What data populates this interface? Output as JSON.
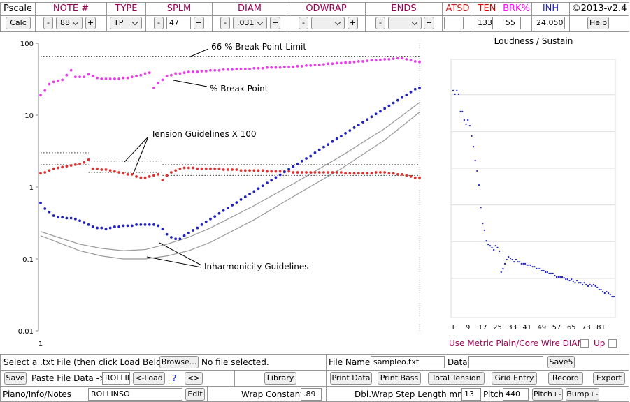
{
  "toolbar": {
    "headers": [
      "Pscale",
      "NOTE #",
      "TYPE",
      "SPLM",
      "DIAM",
      "ODWRAP",
      "ENDS",
      "ATSD",
      "TEN",
      "BRK%",
      "INH",
      "©2013-v2.4"
    ],
    "calc": "Calc",
    "minus": "-",
    "plus": "+",
    "note": "88",
    "type": "TP",
    "splm": "47",
    "diam": ".031",
    "ten": "133",
    "brk": "55",
    "inh": "24.050",
    "help": "Help"
  },
  "chart_data": [
    {
      "type": "scatter",
      "log_scale": true,
      "ylim": [
        0.01,
        100
      ],
      "yticks": [
        0.01,
        0.1,
        1,
        10,
        100
      ],
      "xlim": [
        1,
        88
      ],
      "xticks": [
        1
      ],
      "x": [
        1,
        2,
        3,
        4,
        5,
        6,
        7,
        8,
        9,
        10,
        11,
        12,
        13,
        14,
        15,
        16,
        17,
        18,
        19,
        20,
        21,
        22,
        23,
        24,
        25,
        26,
        27,
        28,
        29,
        30,
        31,
        32,
        33,
        34,
        35,
        36,
        37,
        38,
        39,
        40,
        41,
        42,
        43,
        44,
        45,
        46,
        47,
        48,
        49,
        50,
        51,
        52,
        53,
        54,
        55,
        56,
        57,
        58,
        59,
        60,
        61,
        62,
        63,
        64,
        65,
        66,
        67,
        68,
        69,
        70,
        71,
        72,
        73,
        74,
        75,
        76,
        77,
        78,
        79,
        80,
        81,
        82,
        83,
        84,
        85,
        86,
        87,
        88
      ],
      "series": [
        {
          "color": "#e83ee8",
          "values": [
            19,
            22,
            27,
            29,
            30,
            31,
            36,
            42,
            34,
            34,
            34,
            37,
            35,
            33,
            32,
            32,
            32,
            32,
            32,
            33,
            33,
            34,
            35,
            36,
            38,
            39,
            24,
            28,
            31,
            35,
            36,
            38,
            38,
            39,
            40,
            40,
            40,
            41,
            41,
            42,
            42,
            42,
            43,
            43,
            43,
            44,
            44,
            44,
            44,
            45,
            45,
            45,
            46,
            46,
            46,
            46,
            47,
            47,
            47,
            48,
            48,
            49,
            49,
            50,
            50,
            51,
            52,
            52,
            53,
            53,
            54,
            54,
            55,
            56,
            56,
            57,
            58,
            58,
            59,
            60,
            60,
            61,
            62,
            62,
            60,
            58,
            56,
            55
          ]
        },
        {
          "color": "#e03030",
          "values": [
            1.55,
            1.6,
            1.7,
            1.8,
            1.85,
            1.9,
            1.95,
            2.0,
            2.05,
            2.1,
            2.2,
            2.4,
            1.8,
            1.8,
            1.75,
            1.75,
            1.7,
            1.65,
            1.6,
            1.55,
            1.5,
            1.5,
            1.4,
            1.35,
            1.35,
            1.4,
            1.45,
            1.5,
            1.25,
            1.45,
            1.6,
            1.7,
            1.8,
            1.85,
            1.85,
            1.85,
            1.8,
            1.8,
            1.8,
            1.8,
            1.8,
            1.8,
            1.75,
            1.75,
            1.75,
            1.75,
            1.7,
            1.7,
            1.7,
            1.7,
            1.7,
            1.7,
            1.65,
            1.65,
            1.65,
            1.65,
            1.65,
            1.65,
            1.6,
            1.6,
            1.6,
            1.6,
            1.6,
            1.6,
            1.6,
            1.6,
            1.6,
            1.6,
            1.6,
            1.6,
            1.55,
            1.55,
            1.55,
            1.55,
            1.55,
            1.55,
            1.55,
            1.6,
            1.6,
            1.6,
            1.55,
            1.55,
            1.5,
            1.5,
            1.45,
            1.4,
            1.35,
            1.35
          ]
        },
        {
          "color": "#2222c0",
          "values": [
            0.6,
            0.5,
            0.45,
            0.4,
            0.38,
            0.38,
            0.37,
            0.37,
            0.36,
            0.34,
            0.32,
            0.3,
            0.28,
            0.27,
            0.27,
            0.26,
            0.27,
            0.28,
            0.28,
            0.29,
            0.29,
            0.29,
            0.3,
            0.3,
            0.3,
            0.3,
            0.3,
            0.29,
            0.26,
            0.22,
            0.2,
            0.19,
            0.19,
            0.21,
            0.23,
            0.25,
            0.27,
            0.3,
            0.33,
            0.36,
            0.39,
            0.43,
            0.47,
            0.51,
            0.56,
            0.61,
            0.67,
            0.73,
            0.8,
            0.87,
            0.95,
            1.04,
            1.14,
            1.24,
            1.36,
            1.48,
            1.62,
            1.77,
            1.93,
            2.1,
            2.3,
            2.5,
            2.7,
            3.0,
            3.3,
            3.6,
            3.9,
            4.3,
            4.7,
            5.1,
            5.6,
            6.1,
            6.7,
            7.3,
            8.0,
            8.7,
            9.5,
            10.4,
            11.3,
            12.4,
            13.5,
            14.8,
            16.1,
            17.6,
            19.2,
            21,
            23,
            24
          ]
        }
      ],
      "lines": [
        {
          "color": "#999999",
          "x": [
            1,
            5,
            10,
            15,
            20,
            25,
            30,
            35,
            40,
            50,
            60,
            70,
            80,
            88
          ],
          "values": [
            0.24,
            0.2,
            0.16,
            0.14,
            0.13,
            0.135,
            0.16,
            0.2,
            0.27,
            0.55,
            1.2,
            2.7,
            6.5,
            15
          ]
        },
        {
          "color": "#999999",
          "x": [
            1,
            5,
            10,
            15,
            20,
            25,
            30,
            35,
            40,
            50,
            60,
            70,
            80,
            88
          ],
          "values": [
            0.21,
            0.17,
            0.13,
            0.11,
            0.1,
            0.1,
            0.11,
            0.13,
            0.17,
            0.35,
            0.8,
            1.8,
            4.5,
            11
          ]
        }
      ],
      "reference_lines": [
        {
          "value": 66,
          "x": [
            1,
            88
          ]
        },
        {
          "value": 3.0,
          "x": [
            1,
            12
          ]
        },
        {
          "value": 2.05,
          "x": [
            1,
            12
          ]
        },
        {
          "value": 2.3,
          "x": [
            12,
            29
          ]
        },
        {
          "value": 1.6,
          "x": [
            12,
            29
          ]
        },
        {
          "value": 2.05,
          "x": [
            29,
            88
          ]
        },
        {
          "value": 1.45,
          "x": [
            29,
            88
          ]
        }
      ],
      "annotations": [
        "66 % Break Point Limit",
        "% Break Point",
        "Tension Guidelines X 100",
        "Inharmonicity Guidelines"
      ]
    },
    {
      "type": "scatter",
      "title": "Loudness / Sustain",
      "ylim": [
        0,
        100
      ],
      "gridlines": [
        19.5,
        33,
        46.5,
        60,
        73.5,
        87
      ],
      "xlim": [
        1,
        88
      ],
      "xticks": [
        1,
        9,
        17,
        25,
        33,
        41,
        49,
        57,
        65,
        73,
        81
      ],
      "color": "#2222c0",
      "x": [
        1,
        2,
        3,
        4,
        5,
        6,
        7,
        8,
        9,
        10,
        11,
        12,
        13,
        14,
        15,
        16,
        17,
        18,
        19,
        20,
        21,
        22,
        23,
        24,
        25,
        26,
        27,
        28,
        29,
        30,
        31,
        32,
        33,
        34,
        35,
        36,
        37,
        38,
        39,
        40,
        41,
        42,
        43,
        44,
        45,
        46,
        47,
        48,
        49,
        50,
        51,
        52,
        53,
        54,
        55,
        56,
        57,
        58,
        59,
        60,
        61,
        62,
        63,
        64,
        65,
        66,
        67,
        68,
        69,
        70,
        71,
        72,
        73,
        74,
        75,
        76,
        77,
        78,
        79,
        80,
        81,
        82,
        83,
        84,
        85,
        86,
        87,
        88
      ],
      "values": [
        88.5,
        87.2,
        88.5,
        87.2,
        80.8,
        80.8,
        77.7,
        76.2,
        77.7,
        75.6,
        71.8,
        67.9,
        62.8,
        59,
        53.8,
        45.6,
        39.7,
        37.2,
        33.3,
        32,
        31.5,
        30.8,
        30,
        31.5,
        30.8,
        29.5,
        21.8,
        23.1,
        24.9,
        26.4,
        27.4,
        26.9,
        26.4,
        25.6,
        26.4,
        25.6,
        25.6,
        24.9,
        24.9,
        24.9,
        24.4,
        24.4,
        24.4,
        23.8,
        23.8,
        23.1,
        23.1,
        23.1,
        22.3,
        22.3,
        21.8,
        21.8,
        21.3,
        21.3,
        21.3,
        20.5,
        20,
        20,
        20,
        20,
        19.7,
        19.2,
        19.2,
        18.7,
        19.2,
        18.5,
        17.9,
        18.7,
        17.9,
        17.9,
        17.2,
        17.9,
        17.2,
        16.7,
        17.2,
        16.7,
        17.2,
        16.7,
        16.2,
        15.4,
        15.4,
        14.6,
        14.1,
        14.6,
        14.1,
        13.6,
        12.8,
        12.8
      ],
      "options": [
        "Use Metric Plain/Core Wire DIAM",
        "Up"
      ]
    }
  ],
  "footer": {
    "select_file": "Select a .txt File (then click Load Below)",
    "browse": "Browse...",
    "no_file": "No file selected.",
    "file_name_label": "File Name:",
    "file_name": "sampleo.txt",
    "data_label": "Data:",
    "save5": "Save5",
    "save": "Save",
    "paste_label": "Paste File Data ->",
    "paste_value": "ROLLIN",
    "load": "<-Load",
    "help_link": "?",
    "swap": "<>",
    "library": "Library",
    "buttons": [
      "Print Data",
      "Print Bass",
      "Total Tension",
      "Grid Entry",
      "Record",
      "Export"
    ],
    "notes_label": "Piano/Info/Notes",
    "notes_value": "ROLLINSO",
    "edit": "Edit",
    "wrap_label": "Wrap Constant",
    "wrap_value": ".89",
    "step_label": "Dbl.Wrap Step Length mm.",
    "step_value": "13",
    "pitch_label": "Pitch",
    "pitch_value": "440",
    "pitch_btn": "Pitch+-",
    "bump_btn": "Bump+-"
  }
}
